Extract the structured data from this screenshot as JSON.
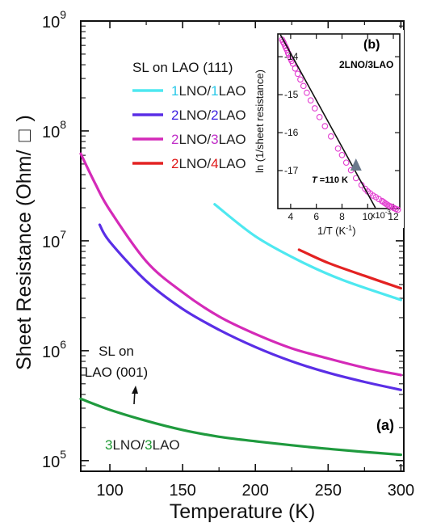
{
  "chart_data": {
    "main": {
      "type": "line",
      "panel_label": "(a)",
      "xlabel": "Temperature (K)",
      "ylabel": "Sheet Resistance (Ohm/",
      "ylabel_symbol": "□",
      "ylabel_close": ")",
      "xlim": [
        80,
        302
      ],
      "ylim": [
        80000,
        1000000000
      ],
      "yscale": "log",
      "xticks": [
        100,
        150,
        200,
        250,
        300
      ],
      "yticks": [
        {
          "value": 100000,
          "base": "10",
          "exp": "5"
        },
        {
          "value": 1000000,
          "base": "10",
          "exp": "6"
        },
        {
          "value": 10000000,
          "base": "10",
          "exp": "7"
        },
        {
          "value": 100000000,
          "base": "10",
          "exp": "8"
        },
        {
          "value": 1000000000,
          "base": "10",
          "exp": "9"
        }
      ],
      "legend_title": "SL on LAO (111)",
      "legend_placement": "upper-left",
      "series": [
        {
          "name_parts": [
            "1",
            "LNO/",
            "1",
            "LAO"
          ],
          "part_colors": [
            "#29c8e8",
            "#222222",
            "#29c8e8",
            "#222222"
          ],
          "color": "#4ee8f0",
          "x": [
            172,
            200,
            230,
            260,
            300
          ],
          "y": [
            21500000,
            11000000,
            6600000,
            4400000,
            2900000
          ]
        },
        {
          "name_parts": [
            "2",
            "LNO/",
            "2",
            "LAO"
          ],
          "part_colors": [
            "#3a1ee0",
            "#222222",
            "#3a1ee0",
            "#222222"
          ],
          "color": "#5a2ee6",
          "x": [
            93,
            100,
            125,
            150,
            175,
            200,
            225,
            250,
            275,
            300
          ],
          "y": [
            14000000,
            9800000,
            4300000,
            2400000,
            1550000,
            1080000,
            800000,
            630000,
            520000,
            440000
          ]
        },
        {
          "name_parts": [
            "2",
            "LNO/",
            "3",
            "LAO"
          ],
          "part_colors": [
            "#c02ec8",
            "#222222",
            "#c02ec8",
            "#222222"
          ],
          "color": "#d42ab8",
          "x": [
            80,
            90,
            100,
            125,
            150,
            175,
            200,
            225,
            250,
            275,
            300
          ],
          "y": [
            62000000,
            33000000,
            19000000,
            6500000,
            3400000,
            2050000,
            1420000,
            1050000,
            850000,
            700000,
            600000
          ]
        },
        {
          "name_parts": [
            "2",
            "LNO/",
            "4",
            "LAO"
          ],
          "part_colors": [
            "#e01818",
            "#222222",
            "#e01818",
            "#222222"
          ],
          "color": "#e32222",
          "x": [
            230,
            250,
            275,
            300
          ],
          "y": [
            8300000,
            6300000,
            4800000,
            3700000
          ]
        },
        {
          "name_parts": [
            "3",
            "LNO/",
            "3",
            "LAO"
          ],
          "part_colors": [
            "#1f9a34",
            "#222222",
            "#1f9a34",
            "#222222"
          ],
          "color": "#1f9a3e",
          "x": [
            80,
            100,
            125,
            150,
            175,
            200,
            225,
            250,
            275,
            300
          ],
          "y": [
            365000,
            290000,
            230000,
            190000,
            165000,
            150000,
            138000,
            128000,
            120000,
            113000
          ]
        }
      ],
      "annotations": [
        {
          "text_lines": [
            "SL on",
            "LAO (001)"
          ],
          "arrow": "up",
          "points_to": [
            115,
            260000
          ]
        }
      ]
    },
    "inset": {
      "type": "scatter",
      "panel_label": "(b)",
      "title": "2LNO/3LAO",
      "xlabel_text": "1/T (K",
      "xlabel_exp": "-1",
      "xlabel_close": ")",
      "ylabel": "ln (1/sheet resistance)",
      "xlim": [
        3.0,
        12.5
      ],
      "x_multiplier": "x10",
      "x_multiplier_exp": "-3",
      "ylim": [
        -18.0,
        -13.4
      ],
      "xticks": [
        4,
        6,
        8,
        10,
        12
      ],
      "yticks": [
        -14,
        -15,
        -16,
        -17
      ],
      "points_x": [
        3.33,
        3.4,
        3.48,
        3.57,
        3.64,
        3.71,
        3.8,
        3.87,
        4.0,
        4.08,
        4.17,
        4.35,
        4.55,
        4.76,
        5.0,
        5.26,
        5.56,
        5.88,
        6.25,
        6.67,
        7.14,
        7.69,
        8.0,
        8.33,
        8.7,
        9.09,
        9.52,
        9.8,
        10.0,
        10.2,
        10.42,
        10.64,
        10.87,
        11.11,
        11.24,
        11.36,
        11.49,
        11.63,
        11.76,
        11.9,
        12.05,
        12.2,
        12.35
      ],
      "points_y": [
        -13.55,
        -13.6,
        -13.65,
        -13.72,
        -13.77,
        -13.82,
        -13.9,
        -13.95,
        -14.05,
        -14.11,
        -14.18,
        -14.31,
        -14.45,
        -14.6,
        -14.77,
        -14.95,
        -15.15,
        -15.36,
        -15.59,
        -15.83,
        -16.1,
        -16.42,
        -16.59,
        -16.79,
        -16.99,
        -17.2,
        -17.38,
        -17.48,
        -17.55,
        -17.6,
        -17.66,
        -17.7,
        -17.75,
        -17.8,
        -17.83,
        -17.86,
        -17.89,
        -17.92,
        -17.94,
        -17.96,
        -17.99,
        -18.01,
        -18.03
      ],
      "fit_line": {
        "x": [
          3.2,
          10.6
        ],
        "y": [
          -13.42,
          -17.98
        ],
        "color": "#111111"
      },
      "marker_color": "#e23bd0",
      "marker_label_prefix": "T",
      "marker_label_suffix": " =110 K",
      "marker_x": 9.09,
      "marker_y": -16.85
    }
  }
}
